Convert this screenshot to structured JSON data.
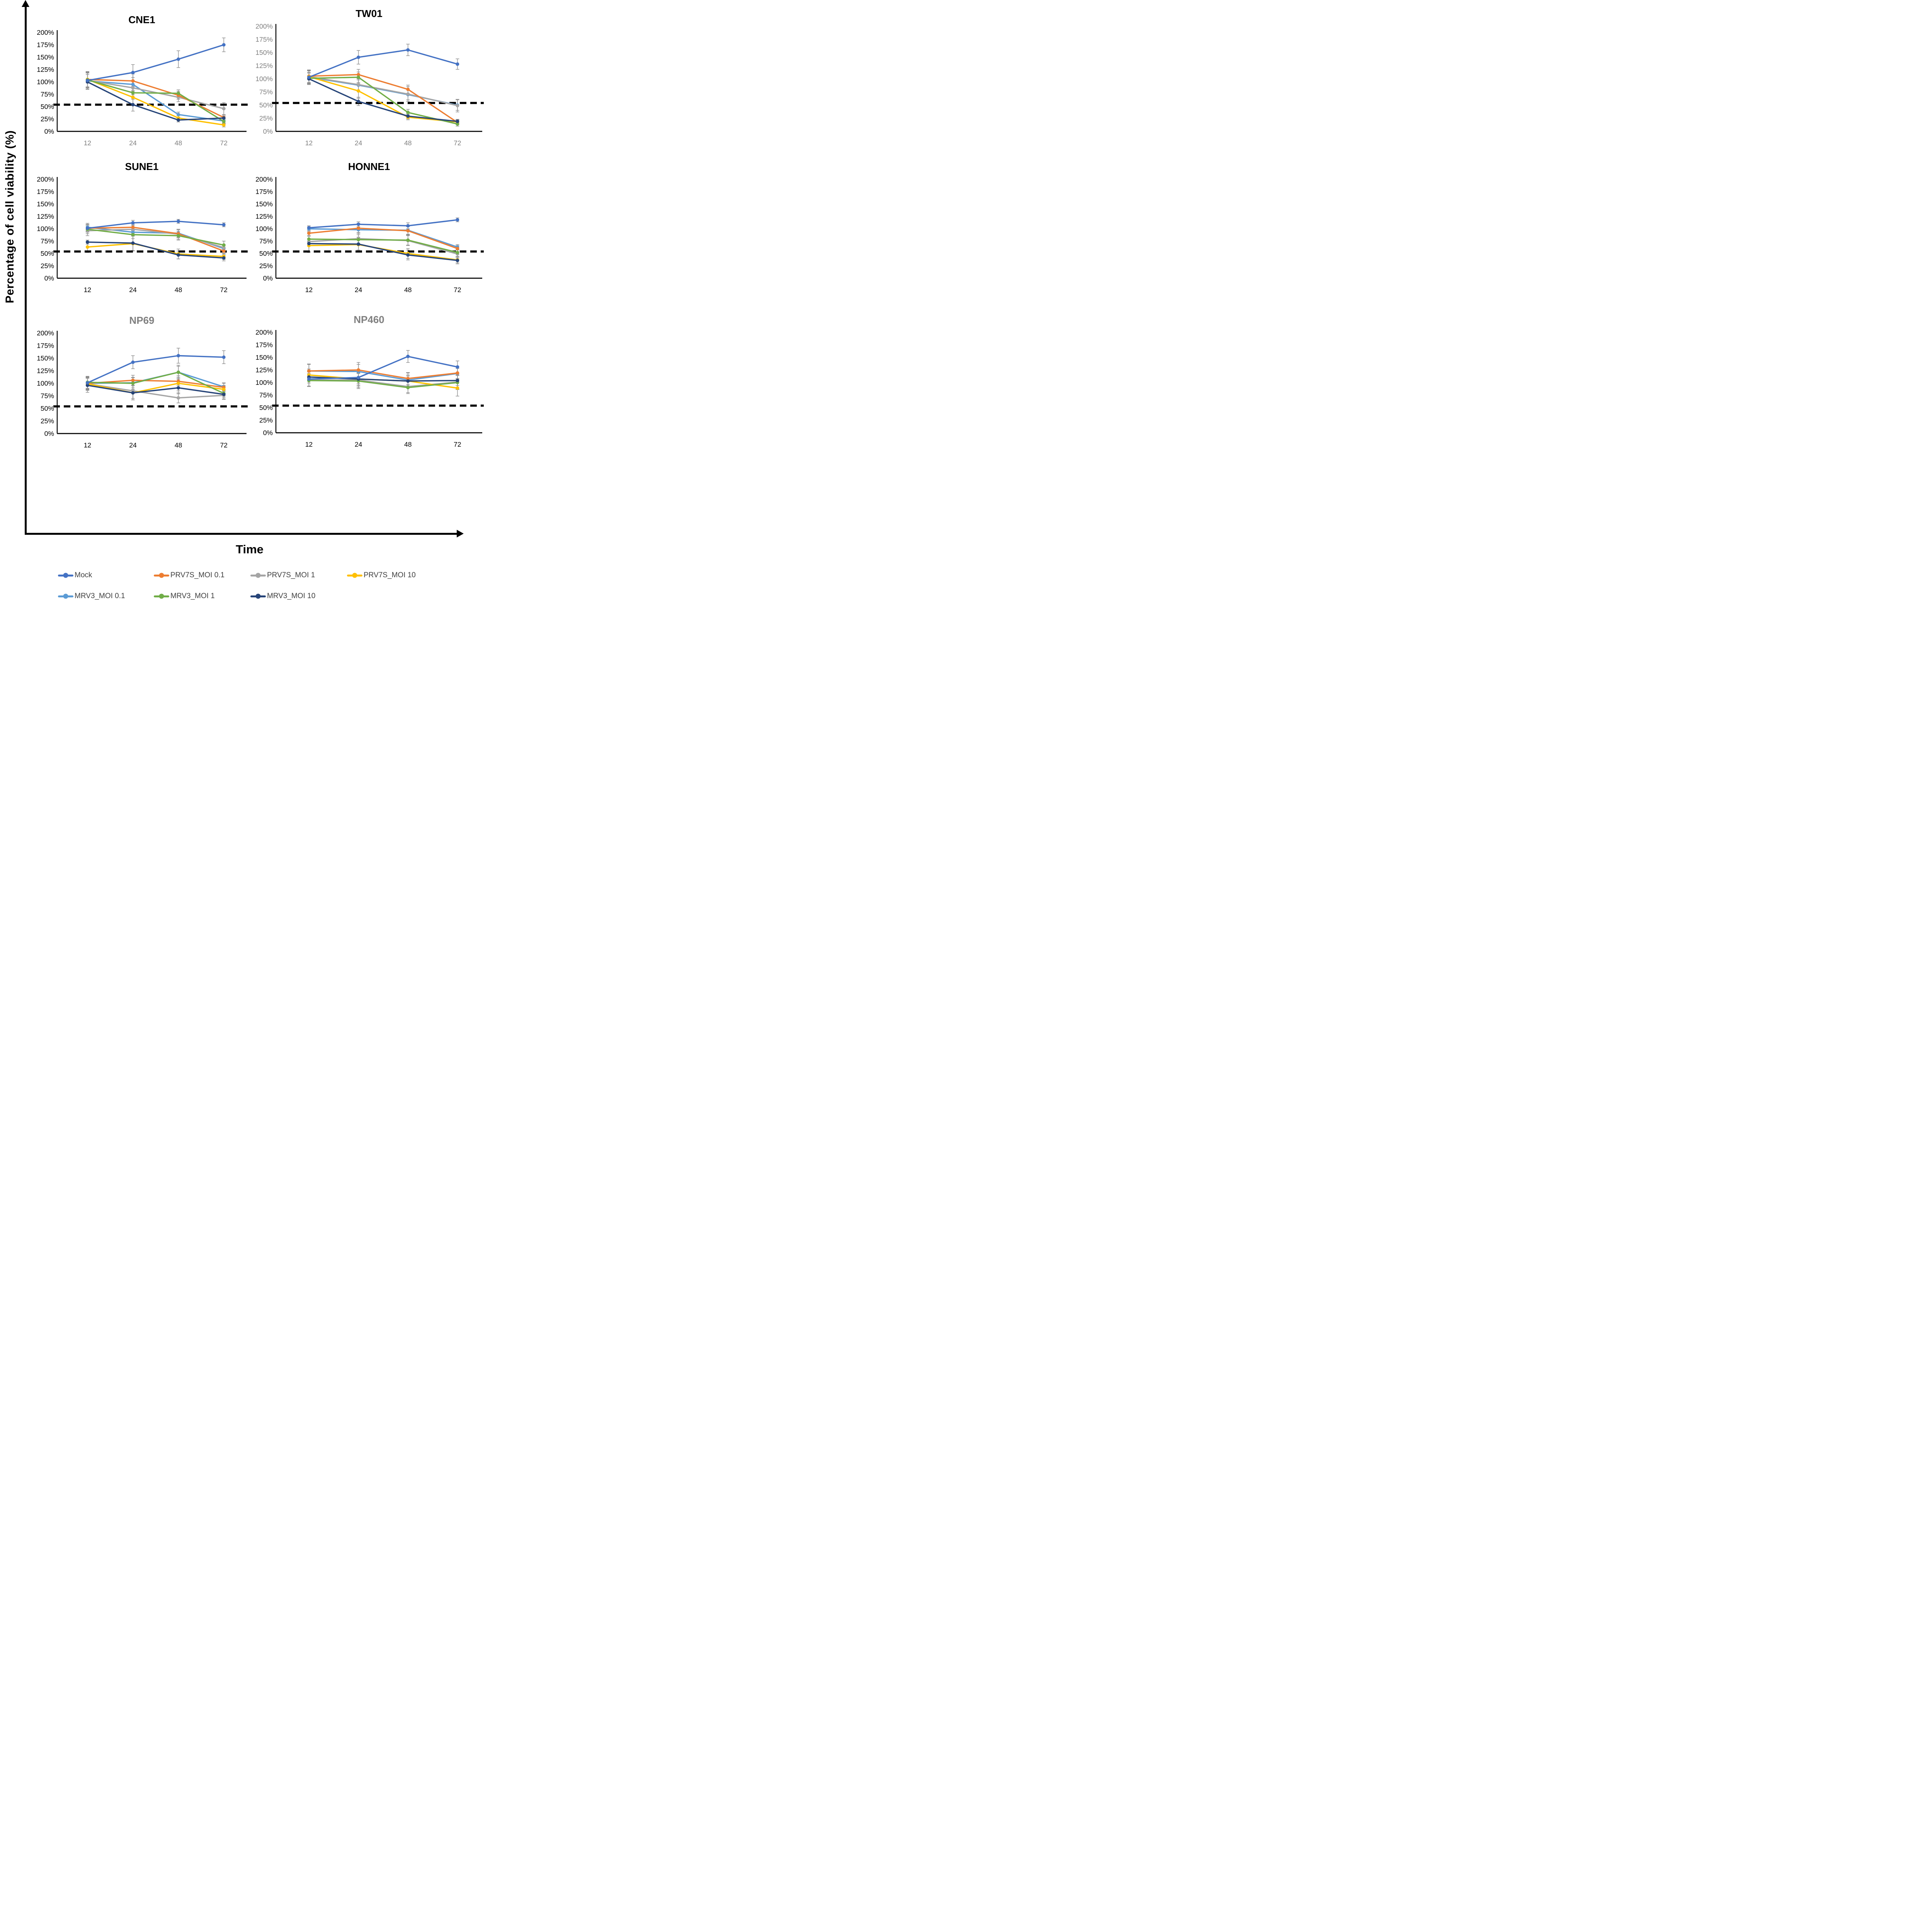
{
  "figure": {
    "y_axis_label": "Percentage of cell viability (%)",
    "x_axis_label": "Time",
    "background": "#ffffff",
    "axis_color": "#000000",
    "error_bar_color": "#8c8c8c",
    "threshold_color": "#000000"
  },
  "palette": {
    "Mock": "#4472C4",
    "PRV7S_MOI 0.1": "#ED7D31",
    "PRV7S_MOI 1": "#A5A5A5",
    "PRV7S_MOI 10": "#FFC000",
    "MRV3_MOI 0.1": "#5B9BD5",
    "MRV3_MOI 1": "#70AD47",
    "MRV3_MOI 10": "#264478"
  },
  "legend": {
    "items": [
      {
        "label": "Mock",
        "color": "#4472C4"
      },
      {
        "label": "PRV7S_MOI 0.1",
        "color": "#ED7D31"
      },
      {
        "label": "PRV7S_MOI 1",
        "color": "#A5A5A5"
      },
      {
        "label": "PRV7S_MOI 10",
        "color": "#FFC000"
      },
      {
        "label": "MRV3_MOI 0.1",
        "color": "#5B9BD5"
      },
      {
        "label": "MRV3_MOI 1",
        "color": "#70AD47"
      },
      {
        "label": "MRV3_MOI 10",
        "color": "#264478"
      }
    ]
  },
  "chart_data": [
    {
      "type": "line",
      "title": "CNE1",
      "title_color": "#000000",
      "y_tick_color": "#000000",
      "x_tick_color": "#808080",
      "x": [
        12,
        24,
        48,
        72
      ],
      "x_tick_labels": [
        "12",
        "24",
        "48",
        "72"
      ],
      "y_tick_labels": [
        "200%",
        "175%",
        "150%",
        "125%",
        "100%",
        "75%",
        "50%",
        "25%",
        "0%"
      ],
      "ylim": [
        0,
        200
      ],
      "threshold_pct": 54,
      "series": [
        {
          "name": "Mock",
          "values": [
            103,
            119,
            146,
            175
          ],
          "err": [
            18,
            16,
            17,
            14
          ]
        },
        {
          "name": "PRV7S_MOI 0.1",
          "values": [
            105,
            102,
            73,
            28
          ],
          "err": [
            16,
            14,
            8,
            5
          ]
        },
        {
          "name": "PRV7S_MOI 1",
          "values": [
            103,
            88,
            69,
            46
          ],
          "err": [
            15,
            14,
            9,
            12
          ]
        },
        {
          "name": "PRV7S_MOI 10",
          "values": [
            105,
            69,
            27,
            13
          ],
          "err": [
            15,
            14,
            5,
            4
          ]
        },
        {
          "name": "MRV3_MOI 0.1",
          "values": [
            102,
            95,
            34,
            21
          ],
          "err": [
            16,
            14,
            5,
            5
          ]
        },
        {
          "name": "MRV3_MOI 1",
          "values": [
            104,
            78,
            77,
            20
          ],
          "err": [
            15,
            13,
            7,
            5
          ]
        },
        {
          "name": "MRV3_MOI 10",
          "values": [
            100,
            54,
            23,
            27
          ],
          "err": [
            15,
            13,
            4,
            4
          ]
        }
      ]
    },
    {
      "type": "line",
      "title": "TW01",
      "title_color": "#000000",
      "y_tick_color": "#808080",
      "x_tick_color": "#808080",
      "x": [
        12,
        24,
        48,
        72
      ],
      "x_tick_labels": [
        "12",
        "24",
        "48",
        "72"
      ],
      "y_tick_labels": [
        "200%",
        "175%",
        "150%",
        "125%",
        "100%",
        "75%",
        "50%",
        "25%",
        "0%"
      ],
      "ylim": [
        0,
        200
      ],
      "threshold_pct": 54,
      "series": [
        {
          "name": "Mock",
          "values": [
            103,
            141,
            155,
            128
          ],
          "err": [
            12,
            13,
            11,
            10
          ]
        },
        {
          "name": "PRV7S_MOI 0.1",
          "values": [
            105,
            108,
            80,
            17
          ],
          "err": [
            12,
            10,
            8,
            4
          ]
        },
        {
          "name": "PRV7S_MOI 1",
          "values": [
            104,
            89,
            71,
            49
          ],
          "err": [
            12,
            12,
            14,
            12
          ]
        },
        {
          "name": "PRV7S_MOI 10",
          "values": [
            104,
            77,
            27,
            18
          ],
          "err": [
            12,
            14,
            5,
            4
          ]
        },
        {
          "name": "MRV3_MOI 0.1",
          "values": [
            103,
            88,
            70,
            50
          ],
          "err": [
            12,
            12,
            10,
            10
          ]
        },
        {
          "name": "MRV3_MOI 1",
          "values": [
            101,
            103,
            36,
            14
          ],
          "err": [
            11,
            10,
            6,
            4
          ]
        },
        {
          "name": "MRV3_MOI 10",
          "values": [
            100,
            57,
            29,
            19
          ],
          "err": [
            11,
            8,
            5,
            4
          ]
        }
      ]
    },
    {
      "type": "line",
      "title": "SUNE1",
      "title_color": "#000000",
      "y_tick_color": "#000000",
      "x_tick_color": "#000000",
      "x": [
        12,
        24,
        48,
        72
      ],
      "x_tick_labels": [
        "12",
        "24",
        "48",
        "72"
      ],
      "y_tick_labels": [
        "200%",
        "175%",
        "150%",
        "125%",
        "100%",
        "75%",
        "50%",
        "25%",
        "0%"
      ],
      "ylim": [
        0,
        200
      ],
      "threshold_pct": 54,
      "series": [
        {
          "name": "Mock",
          "values": [
            101,
            112,
            115,
            108
          ],
          "err": [
            8,
            5,
            4,
            4
          ]
        },
        {
          "name": "PRV7S_MOI 0.1",
          "values": [
            101,
            103,
            90,
            55
          ],
          "err": [
            7,
            6,
            8,
            6
          ]
        },
        {
          "name": "PRV7S_MOI 1",
          "values": [
            96,
            99,
            89,
            62
          ],
          "err": [
            10,
            8,
            10,
            6
          ]
        },
        {
          "name": "PRV7S_MOI 10",
          "values": [
            63,
            70,
            49,
            44
          ],
          "err": [
            11,
            15,
            10,
            6
          ]
        },
        {
          "name": "MRV3_MOI 0.1",
          "values": [
            103,
            93,
            91,
            60
          ],
          "err": [
            8,
            7,
            8,
            6
          ]
        },
        {
          "name": "MRV3_MOI 1",
          "values": [
            99,
            88,
            86,
            67
          ],
          "err": [
            9,
            8,
            9,
            8
          ]
        },
        {
          "name": "MRV3_MOI 10",
          "values": [
            73,
            71,
            47,
            41
          ],
          "err": [
            4,
            15,
            8,
            6
          ]
        }
      ]
    },
    {
      "type": "line",
      "title": "HONNE1",
      "title_color": "#000000",
      "y_tick_color": "#000000",
      "x_tick_color": "#000000",
      "x": [
        12,
        24,
        48,
        72
      ],
      "x_tick_labels": [
        "12",
        "24",
        "48",
        "72"
      ],
      "y_tick_labels": [
        "200%",
        "175%",
        "150%",
        "125%",
        "100%",
        "75%",
        "50%",
        "25%",
        "0%"
      ],
      "ylim": [
        0,
        200
      ],
      "threshold_pct": 54,
      "series": [
        {
          "name": "Mock",
          "values": [
            102,
            109,
            106,
            118
          ],
          "err": [
            4,
            5,
            6,
            4
          ]
        },
        {
          "name": "PRV7S_MOI 0.1",
          "values": [
            91,
            101,
            96,
            60
          ],
          "err": [
            5,
            10,
            8,
            6
          ]
        },
        {
          "name": "PRV7S_MOI 1",
          "values": [
            74,
            80,
            76,
            49
          ],
          "err": [
            20,
            12,
            10,
            8
          ]
        },
        {
          "name": "PRV7S_MOI 10",
          "values": [
            66,
            68,
            50,
            37
          ],
          "err": [
            14,
            15,
            10,
            6
          ]
        },
        {
          "name": "MRV3_MOI 0.1",
          "values": [
            100,
            98,
            97,
            63
          ],
          "err": [
            4,
            6,
            8,
            5
          ]
        },
        {
          "name": "MRV3_MOI 1",
          "values": [
            79,
            78,
            77,
            52
          ],
          "err": [
            6,
            10,
            10,
            8
          ]
        },
        {
          "name": "MRV3_MOI 10",
          "values": [
            70,
            69,
            47,
            36
          ],
          "err": [
            5,
            12,
            10,
            7
          ]
        }
      ]
    },
    {
      "type": "line",
      "title": "NP69",
      "title_color": "#808080",
      "y_tick_color": "#000000",
      "x_tick_color": "#000000",
      "x": [
        12,
        24,
        48,
        72
      ],
      "x_tick_labels": [
        "12",
        "24",
        "48",
        "72"
      ],
      "y_tick_labels": [
        "200%",
        "175%",
        "150%",
        "125%",
        "100%",
        "75%",
        "50%",
        "25%",
        "0%"
      ],
      "ylim": [
        0,
        200
      ],
      "threshold_pct": 54,
      "series": [
        {
          "name": "Mock",
          "values": [
            101,
            142,
            155,
            152
          ],
          "err": [
            12,
            13,
            15,
            13
          ]
        },
        {
          "name": "PRV7S_MOI 0.1",
          "values": [
            100,
            106,
            104,
            92
          ],
          "err": [
            12,
            10,
            8,
            8
          ]
        },
        {
          "name": "PRV7S_MOI 1",
          "values": [
            99,
            85,
            71,
            76
          ],
          "err": [
            12,
            15,
            10,
            8
          ]
        },
        {
          "name": "PRV7S_MOI 10",
          "values": [
            99,
            81,
            100,
            88
          ],
          "err": [
            13,
            14,
            15,
            8
          ]
        },
        {
          "name": "MRV3_MOI 0.1",
          "values": [
            100,
            101,
            122,
            93
          ],
          "err": [
            12,
            10,
            14,
            8
          ]
        },
        {
          "name": "MRV3_MOI 1",
          "values": [
            102,
            100,
            122,
            80
          ],
          "err": [
            12,
            12,
            12,
            8
          ]
        },
        {
          "name": "MRV3_MOI 10",
          "values": [
            96,
            81,
            91,
            78
          ],
          "err": [
            14,
            14,
            12,
            9
          ]
        }
      ]
    },
    {
      "type": "line",
      "title": "NP460",
      "title_color": "#808080",
      "y_tick_color": "#000000",
      "x_tick_color": "#000000",
      "x": [
        12,
        24,
        48,
        72
      ],
      "x_tick_labels": [
        "12",
        "24",
        "48",
        "72"
      ],
      "y_tick_labels": [
        "200%",
        "175%",
        "150%",
        "125%",
        "100%",
        "75%",
        "50%",
        "25%",
        "0%"
      ],
      "ylim": [
        0,
        200
      ],
      "threshold_pct": 54,
      "series": [
        {
          "name": "Mock",
          "values": [
            107,
            110,
            152,
            131
          ],
          "err": [
            14,
            12,
            12,
            12
          ]
        },
        {
          "name": "PRV7S_MOI 0.1",
          "values": [
            123,
            125,
            108,
            119
          ],
          "err": [
            14,
            15,
            12,
            12
          ]
        },
        {
          "name": "PRV7S_MOI 1",
          "values": [
            105,
            105,
            92,
            101
          ],
          "err": [
            13,
            15,
            12,
            14
          ]
        },
        {
          "name": "PRV7S_MOI 10",
          "values": [
            115,
            107,
            103,
            89
          ],
          "err": [
            12,
            14,
            12,
            16
          ]
        },
        {
          "name": "MRV3_MOI 0.1",
          "values": [
            123,
            122,
            105,
            118
          ],
          "err": [
            13,
            14,
            14,
            10
          ]
        },
        {
          "name": "MRV3_MOI 1",
          "values": [
            104,
            103,
            90,
            100
          ],
          "err": [
            12,
            15,
            12,
            14
          ]
        },
        {
          "name": "MRV3_MOI 10",
          "values": [
            111,
            107,
            103,
            104
          ],
          "err": [
            12,
            12,
            10,
            10
          ]
        }
      ]
    }
  ]
}
